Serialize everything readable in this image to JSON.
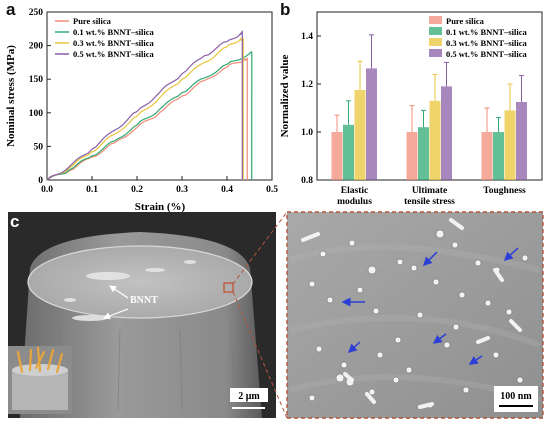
{
  "panels": {
    "a_letter": "a",
    "b_letter": "b",
    "c_letter": "c"
  },
  "colors": {
    "pure": "#f08c78",
    "bnnt01": "#2faa72",
    "bnnt03": "#e9c43a",
    "bnnt05": "#8a5fa6",
    "frame": "#b0553a",
    "arrow": "#2b3fd6"
  },
  "chart_data": [
    {
      "type": "line",
      "xlabel": "Strain (%)",
      "ylabel": "Nominal stress (MPa)",
      "xlim": [
        0.0,
        0.5
      ],
      "ylim": [
        0,
        250
      ],
      "xticks": [
        "0.0",
        "0.1",
        "0.2",
        "0.3",
        "0.4",
        "0.5"
      ],
      "yticks": [
        "0",
        "50",
        "100",
        "150",
        "200",
        "250"
      ],
      "legend_position": "top-left",
      "series": [
        {
          "name": "Pure silica",
          "points": [
            [
              0.0,
              0
            ],
            [
              0.05,
              14
            ],
            [
              0.1,
              34
            ],
            [
              0.15,
              55
            ],
            [
              0.2,
              78
            ],
            [
              0.25,
              100
            ],
            [
              0.3,
              125
            ],
            [
              0.35,
              148
            ],
            [
              0.4,
              168
            ],
            [
              0.44,
              180
            ],
            [
              0.445,
              182
            ],
            [
              0.445,
              0
            ]
          ]
        },
        {
          "name": "0.1 wt.% BNNT–silica",
          "points": [
            [
              0.0,
              0
            ],
            [
              0.05,
              15
            ],
            [
              0.1,
              36
            ],
            [
              0.15,
              58
            ],
            [
              0.2,
              82
            ],
            [
              0.25,
              105
            ],
            [
              0.3,
              130
            ],
            [
              0.35,
              152
            ],
            [
              0.4,
              172
            ],
            [
              0.45,
              188
            ],
            [
              0.455,
              190
            ],
            [
              0.455,
              0
            ]
          ]
        },
        {
          "name": "0.3 wt.% BNNT–silica",
          "points": [
            [
              0.0,
              0
            ],
            [
              0.05,
              18
            ],
            [
              0.1,
              42
            ],
            [
              0.15,
              68
            ],
            [
              0.2,
              95
            ],
            [
              0.25,
              122
            ],
            [
              0.3,
              150
            ],
            [
              0.35,
              175
            ],
            [
              0.4,
              198
            ],
            [
              0.43,
              210
            ],
            [
              0.436,
              212
            ],
            [
              0.436,
              0
            ]
          ]
        },
        {
          "name": "0.5 wt.% BNNT–silica",
          "points": [
            [
              0.0,
              0
            ],
            [
              0.05,
              20
            ],
            [
              0.1,
              46
            ],
            [
              0.15,
              74
            ],
            [
              0.2,
              102
            ],
            [
              0.25,
              130
            ],
            [
              0.3,
              158
            ],
            [
              0.35,
              185
            ],
            [
              0.4,
              206
            ],
            [
              0.43,
              218
            ],
            [
              0.434,
              222
            ],
            [
              0.434,
              0
            ]
          ]
        }
      ]
    },
    {
      "type": "bar",
      "ylabel": "Normalized value",
      "ylim": [
        0.8,
        1.5
      ],
      "yticks": [
        "0.8",
        "1.0",
        "1.2",
        "1.4"
      ],
      "legend_position": "top-right",
      "categories": [
        "Elastic modulus",
        "Ultimate tensile stress",
        "Toughness"
      ],
      "category_lines": [
        [
          "Elastic",
          "modulus"
        ],
        [
          "Ultimate",
          "tensile stress"
        ],
        [
          "Toughness"
        ]
      ],
      "series": [
        {
          "name": "Pure silica",
          "values": [
            1.0,
            1.0,
            1.0
          ],
          "errors": [
            0.07,
            0.11,
            0.1
          ]
        },
        {
          "name": "0.1 wt.% BNNT–silica",
          "values": [
            1.03,
            1.02,
            1.0
          ],
          "errors": [
            0.1,
            0.07,
            0.06
          ]
        },
        {
          "name": "0.3 wt.% BNNT–silica",
          "values": [
            1.175,
            1.13,
            1.09
          ],
          "errors": [
            0.12,
            0.11,
            0.11
          ]
        },
        {
          "name": "0.5 wt.% BNNT–silica",
          "values": [
            1.265,
            1.19,
            1.125
          ],
          "errors": [
            0.14,
            0.1,
            0.11
          ]
        }
      ]
    }
  ],
  "micrograph_left": {
    "label": "BNNT",
    "scale_bar": "2 μm"
  },
  "micrograph_right": {
    "scale_bar": "100 nm"
  }
}
